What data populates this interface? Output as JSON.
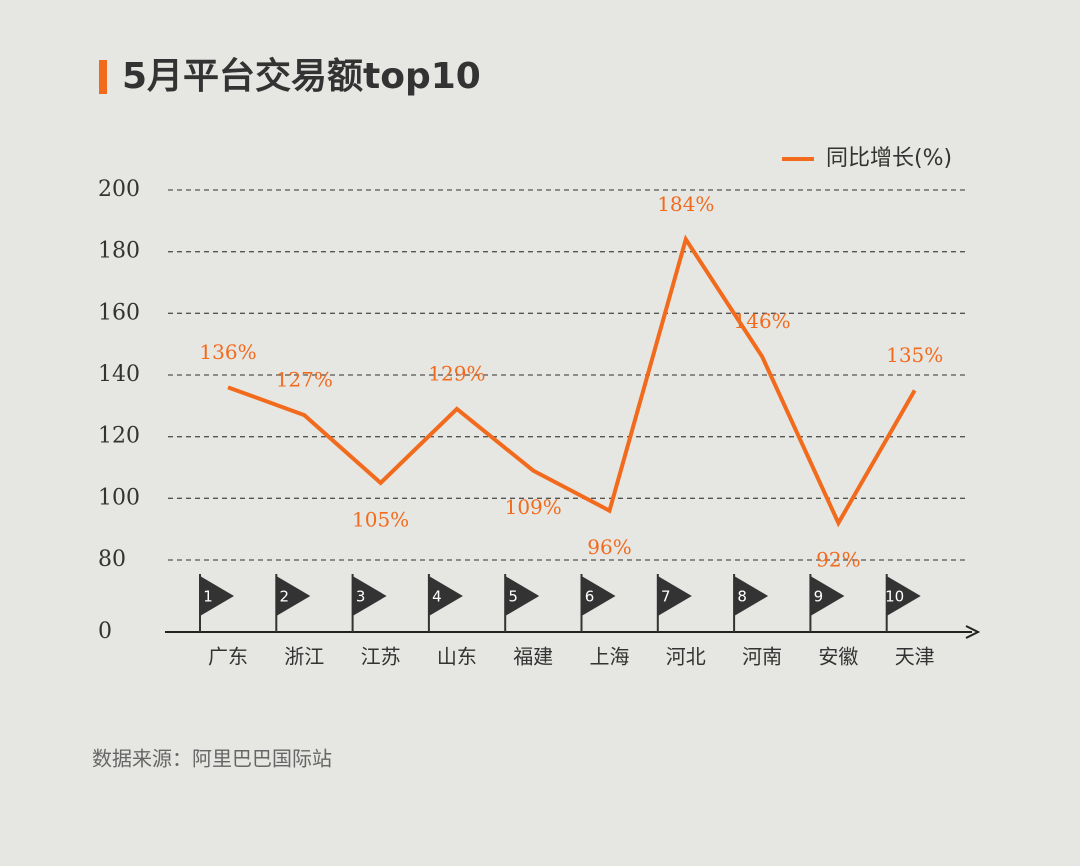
{
  "chart_data": {
    "type": "line",
    "title": "5月平台交易额top10",
    "categories": [
      "广东",
      "浙江",
      "江苏",
      "山东",
      "福建",
      "上海",
      "河北",
      "河南",
      "安徽",
      "天津"
    ],
    "ranks": [
      1,
      2,
      3,
      4,
      5,
      6,
      7,
      8,
      9,
      10
    ],
    "series": [
      {
        "name": "同比增长(%)",
        "color": "#f26b1d",
        "values": [
          136,
          127,
          105,
          129,
          109,
          96,
          184,
          146,
          92,
          135
        ],
        "value_labels": [
          "136%",
          "127%",
          "105%",
          "129%",
          "109%",
          "96%",
          "184%",
          "146%",
          "92%",
          "135%"
        ]
      }
    ],
    "ylim": [
      80,
      200
    ],
    "yticks": [
      0,
      80,
      100,
      120,
      140,
      160,
      180,
      200
    ],
    "axis_break": true,
    "grid": true,
    "legend": "top-right",
    "source": "数据来源：阿里巴巴国际站"
  }
}
